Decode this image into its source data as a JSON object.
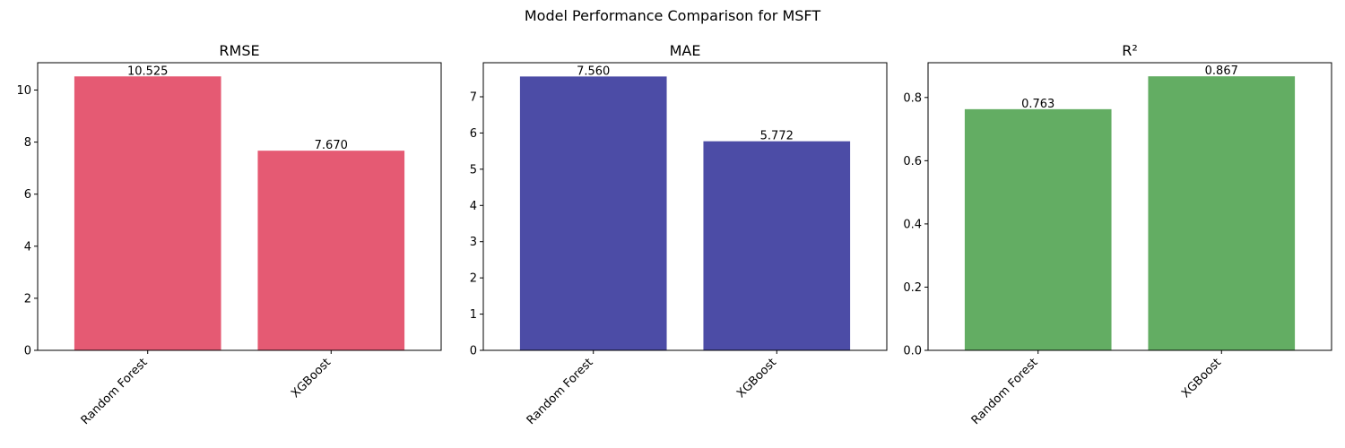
{
  "figure": {
    "title": "Model Performance Comparison for MSFT"
  },
  "chart_data": [
    {
      "type": "bar",
      "title": "RMSE",
      "categories": [
        "Random Forest",
        "XGBoost"
      ],
      "values": [
        10.525,
        7.67
      ],
      "value_labels": [
        "10.525",
        "7.670"
      ],
      "color": "#e55a73",
      "ylim": [
        0,
        11.05
      ],
      "yticks": [
        0,
        2,
        4,
        6,
        8,
        10
      ],
      "ytick_labels": [
        "0",
        "2",
        "4",
        "6",
        "8",
        "10"
      ]
    },
    {
      "type": "bar",
      "title": "MAE",
      "categories": [
        "Random Forest",
        "XGBoost"
      ],
      "values": [
        7.56,
        5.772
      ],
      "value_labels": [
        "7.560",
        "5.772"
      ],
      "color": "#4c4ca6",
      "ylim": [
        0,
        7.94
      ],
      "yticks": [
        0,
        1,
        2,
        3,
        4,
        5,
        6,
        7
      ],
      "ytick_labels": [
        "0",
        "1",
        "2",
        "3",
        "4",
        "5",
        "6",
        "7"
      ]
    },
    {
      "type": "bar",
      "title": "R²",
      "categories": [
        "Random Forest",
        "XGBoost"
      ],
      "values": [
        0.763,
        0.867
      ],
      "value_labels": [
        "0.763",
        "0.867"
      ],
      "color": "#63ad63",
      "ylim": [
        0,
        0.91
      ],
      "yticks": [
        0.0,
        0.2,
        0.4,
        0.6,
        0.8
      ],
      "ytick_labels": [
        "0.0",
        "0.2",
        "0.4",
        "0.6",
        "0.8"
      ]
    }
  ]
}
